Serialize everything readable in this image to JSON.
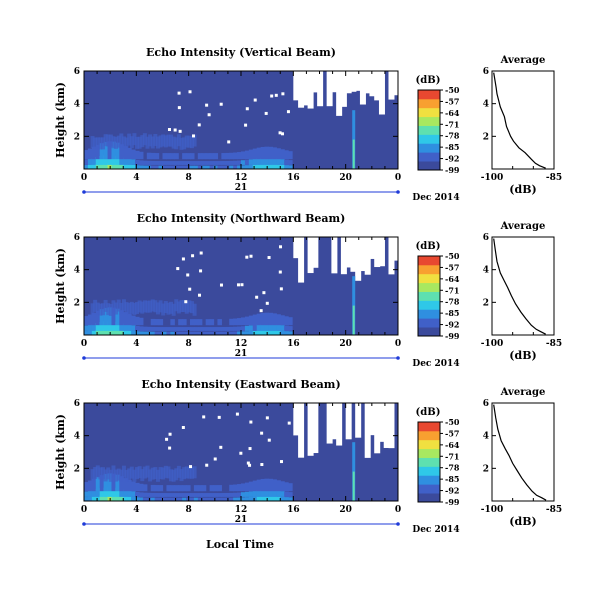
{
  "figure": {
    "date_label": "Dec 2014",
    "day_label": "21",
    "xlabel": "Local Time",
    "ylabel": "Height (km)",
    "cbar_unit": "(dB)",
    "avg_title": "Average",
    "avg_xlabel": "(dB)"
  },
  "colors": {
    "background": "#3b4a9c",
    "no_data": "#ffffff",
    "colormap": [
      "#3b4a9c",
      "#4060c8",
      "#2f8fe0",
      "#2fc8e8",
      "#5ee0b0",
      "#a8e860",
      "#f0e040",
      "#f8a030",
      "#e84830"
    ]
  },
  "chart_data": [
    {
      "type": "heatmap",
      "title": "Echo Intensity (Vertical Beam)",
      "xlabel": "Local Time",
      "ylabel": "Height (km)",
      "xlim": [
        0,
        24
      ],
      "ylim": [
        0,
        6
      ],
      "xticks": [
        "0",
        "4",
        "8",
        "12",
        "16",
        "20",
        "0"
      ],
      "yticks": [
        "2",
        "4",
        "6"
      ],
      "colorbar": {
        "label": "(dB)",
        "ticks": [
          "-50",
          "-57",
          "-64",
          "-71",
          "-78",
          "-85",
          "-92",
          "-99"
        ],
        "range": [
          -99,
          -50
        ]
      },
      "gap_start": 16,
      "features": {
        "surface_layer_peak_time": 2,
        "strong_echo_column_time": 20.5
      }
    },
    {
      "type": "heatmap",
      "title": "Echo Intensity (Northward Beam)",
      "xlabel": "Local Time",
      "ylabel": "Height (km)",
      "xlim": [
        0,
        24
      ],
      "ylim": [
        0,
        6
      ],
      "xticks": [
        "0",
        "4",
        "8",
        "12",
        "16",
        "20",
        "0"
      ],
      "yticks": [
        "2",
        "4",
        "6"
      ],
      "colorbar": {
        "label": "(dB)",
        "ticks": [
          "-50",
          "-57",
          "-64",
          "-71",
          "-78",
          "-85",
          "-92",
          "-99"
        ],
        "range": [
          -99,
          -50
        ]
      },
      "gap_start": 16,
      "features": {
        "surface_layer_peak_time": 2,
        "strong_echo_column_time": 20.5
      }
    },
    {
      "type": "heatmap",
      "title": "Echo Intensity (Eastward Beam)",
      "xlabel": "Local Time",
      "ylabel": "Height (km)",
      "xlim": [
        0,
        24
      ],
      "ylim": [
        0,
        6
      ],
      "xticks": [
        "0",
        "4",
        "8",
        "12",
        "16",
        "20",
        "0"
      ],
      "yticks": [
        "2",
        "4",
        "6"
      ],
      "colorbar": {
        "label": "(dB)",
        "ticks": [
          "-50",
          "-57",
          "-64",
          "-71",
          "-78",
          "-85",
          "-92",
          "-99"
        ],
        "range": [
          -99,
          -50
        ]
      },
      "gap_start": 16,
      "features": {
        "surface_layer_peak_time": 2,
        "strong_echo_column_time": 20.5
      }
    },
    {
      "type": "line",
      "title": "Average",
      "xlabel": "(dB)",
      "xlim": [
        -100,
        -85
      ],
      "ylim": [
        0,
        6
      ],
      "xticks": [
        "-100",
        "-85"
      ],
      "yticks": [
        "2",
        "4",
        "6"
      ],
      "x": [
        -99.6,
        -99.0,
        -98.8,
        -98.0,
        -97.0,
        -96.5,
        -95.5,
        -94.8,
        -93.5,
        -92.0,
        -90.5,
        -89.5,
        -88.5,
        -87.0
      ],
      "y": [
        5.9,
        5.0,
        4.6,
        3.8,
        3.2,
        2.6,
        2.0,
        1.7,
        1.3,
        1.0,
        0.6,
        0.35,
        0.2,
        0.05
      ]
    },
    {
      "type": "line",
      "title": "Average",
      "xlabel": "(dB)",
      "xlim": [
        -100,
        -85
      ],
      "ylim": [
        0,
        6
      ],
      "xticks": [
        "-100",
        "-85"
      ],
      "yticks": [
        "2",
        "4",
        "6"
      ],
      "x": [
        -99.6,
        -99.2,
        -98.8,
        -98.0,
        -97.0,
        -96.2,
        -95.3,
        -94.3,
        -93.0,
        -91.8,
        -90.5,
        -89.3,
        -88.2,
        -87.0
      ],
      "y": [
        5.9,
        5.2,
        4.5,
        3.8,
        3.3,
        2.9,
        2.4,
        1.9,
        1.4,
        1.0,
        0.6,
        0.35,
        0.2,
        0.05
      ]
    },
    {
      "type": "line",
      "title": "Average",
      "xlabel": "(dB)",
      "xlim": [
        -100,
        -85
      ],
      "ylim": [
        0,
        6
      ],
      "xticks": [
        "-100",
        "-85"
      ],
      "yticks": [
        "2",
        "4",
        "6"
      ],
      "x": [
        -99.6,
        -99.1,
        -98.6,
        -97.8,
        -96.8,
        -95.9,
        -95.0,
        -94.0,
        -92.8,
        -91.6,
        -90.3,
        -89.2,
        -88.0,
        -86.9
      ],
      "y": [
        5.9,
        5.1,
        4.4,
        3.7,
        3.2,
        2.8,
        2.3,
        1.9,
        1.4,
        1.0,
        0.6,
        0.35,
        0.2,
        0.05
      ]
    }
  ]
}
